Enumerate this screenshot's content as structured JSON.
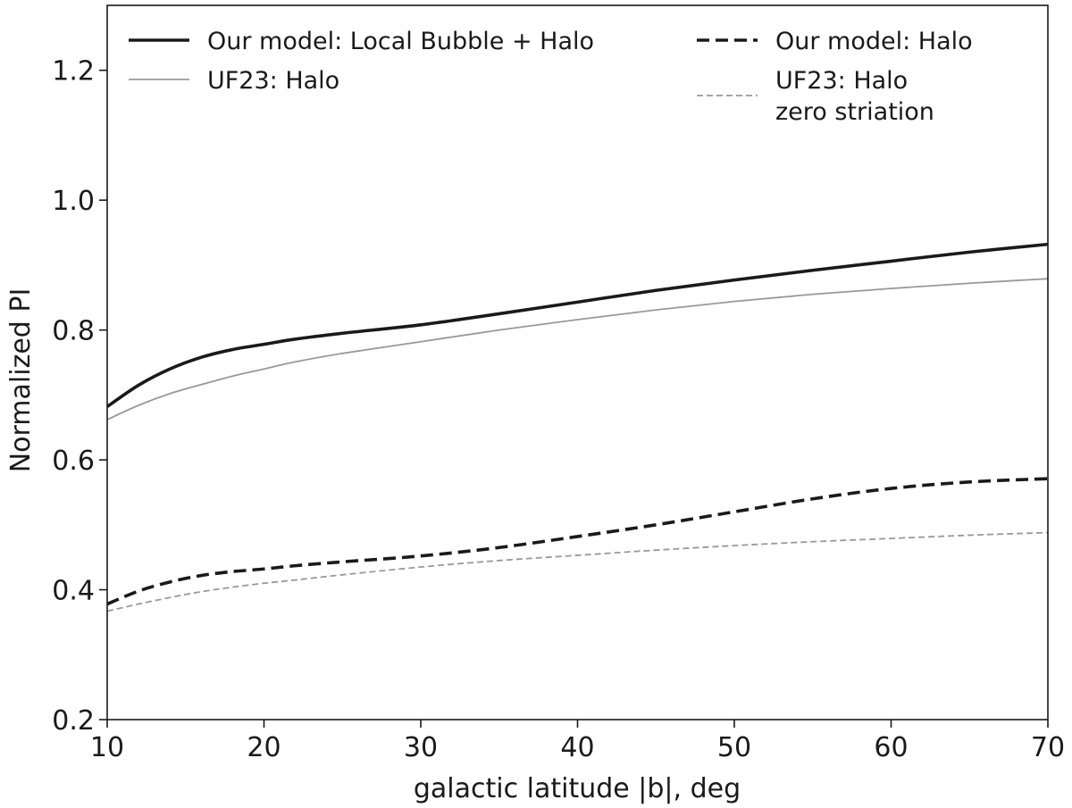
{
  "chart_data": {
    "type": "line",
    "title": "",
    "xlabel": "galactic latitude |b|, deg",
    "ylabel": "Normalized PI",
    "xlim": [
      10,
      70
    ],
    "ylim": [
      0.2,
      1.3
    ],
    "xticks": [
      10,
      20,
      30,
      40,
      50,
      60,
      70
    ],
    "yticks": [
      0.2,
      0.4,
      0.6,
      0.8,
      1.0,
      1.2
    ],
    "xtick_labels": [
      "10",
      "20",
      "30",
      "40",
      "50",
      "60",
      "70"
    ],
    "ytick_labels": [
      "0.2",
      "0.4",
      "0.6",
      "0.8",
      "1.0",
      "1.2"
    ],
    "grid": false,
    "legend_position": "top",
    "x": [
      10,
      12,
      14,
      16,
      18,
      20,
      22,
      25,
      30,
      35,
      40,
      45,
      50,
      55,
      60,
      65,
      70
    ],
    "series": [
      {
        "name": "Our model: Local Bubble + Halo",
        "color": "#1a1a1a",
        "style": "solid",
        "weight": "thick",
        "values": [
          0.682,
          0.715,
          0.74,
          0.758,
          0.77,
          0.778,
          0.786,
          0.795,
          0.808,
          0.825,
          0.843,
          0.861,
          0.877,
          0.892,
          0.906,
          0.92,
          0.932
        ]
      },
      {
        "name": "UF23: Halo",
        "color": "#999999",
        "style": "solid",
        "weight": "thin",
        "values": [
          0.662,
          0.684,
          0.702,
          0.716,
          0.729,
          0.74,
          0.751,
          0.764,
          0.782,
          0.8,
          0.816,
          0.831,
          0.844,
          0.855,
          0.864,
          0.872,
          0.879
        ]
      },
      {
        "name": "Our model: Halo",
        "color": "#1a1a1a",
        "style": "dashed",
        "weight": "thick",
        "values": [
          0.378,
          0.398,
          0.412,
          0.422,
          0.428,
          0.432,
          0.437,
          0.443,
          0.452,
          0.465,
          0.482,
          0.5,
          0.52,
          0.54,
          0.556,
          0.566,
          0.571
        ]
      },
      {
        "name": "UF23: Halo\nzero striation",
        "color": "#999999",
        "style": "dashed",
        "weight": "thin",
        "values": [
          0.367,
          0.378,
          0.388,
          0.397,
          0.404,
          0.41,
          0.415,
          0.423,
          0.435,
          0.445,
          0.453,
          0.461,
          0.468,
          0.474,
          0.479,
          0.484,
          0.488
        ]
      }
    ]
  }
}
